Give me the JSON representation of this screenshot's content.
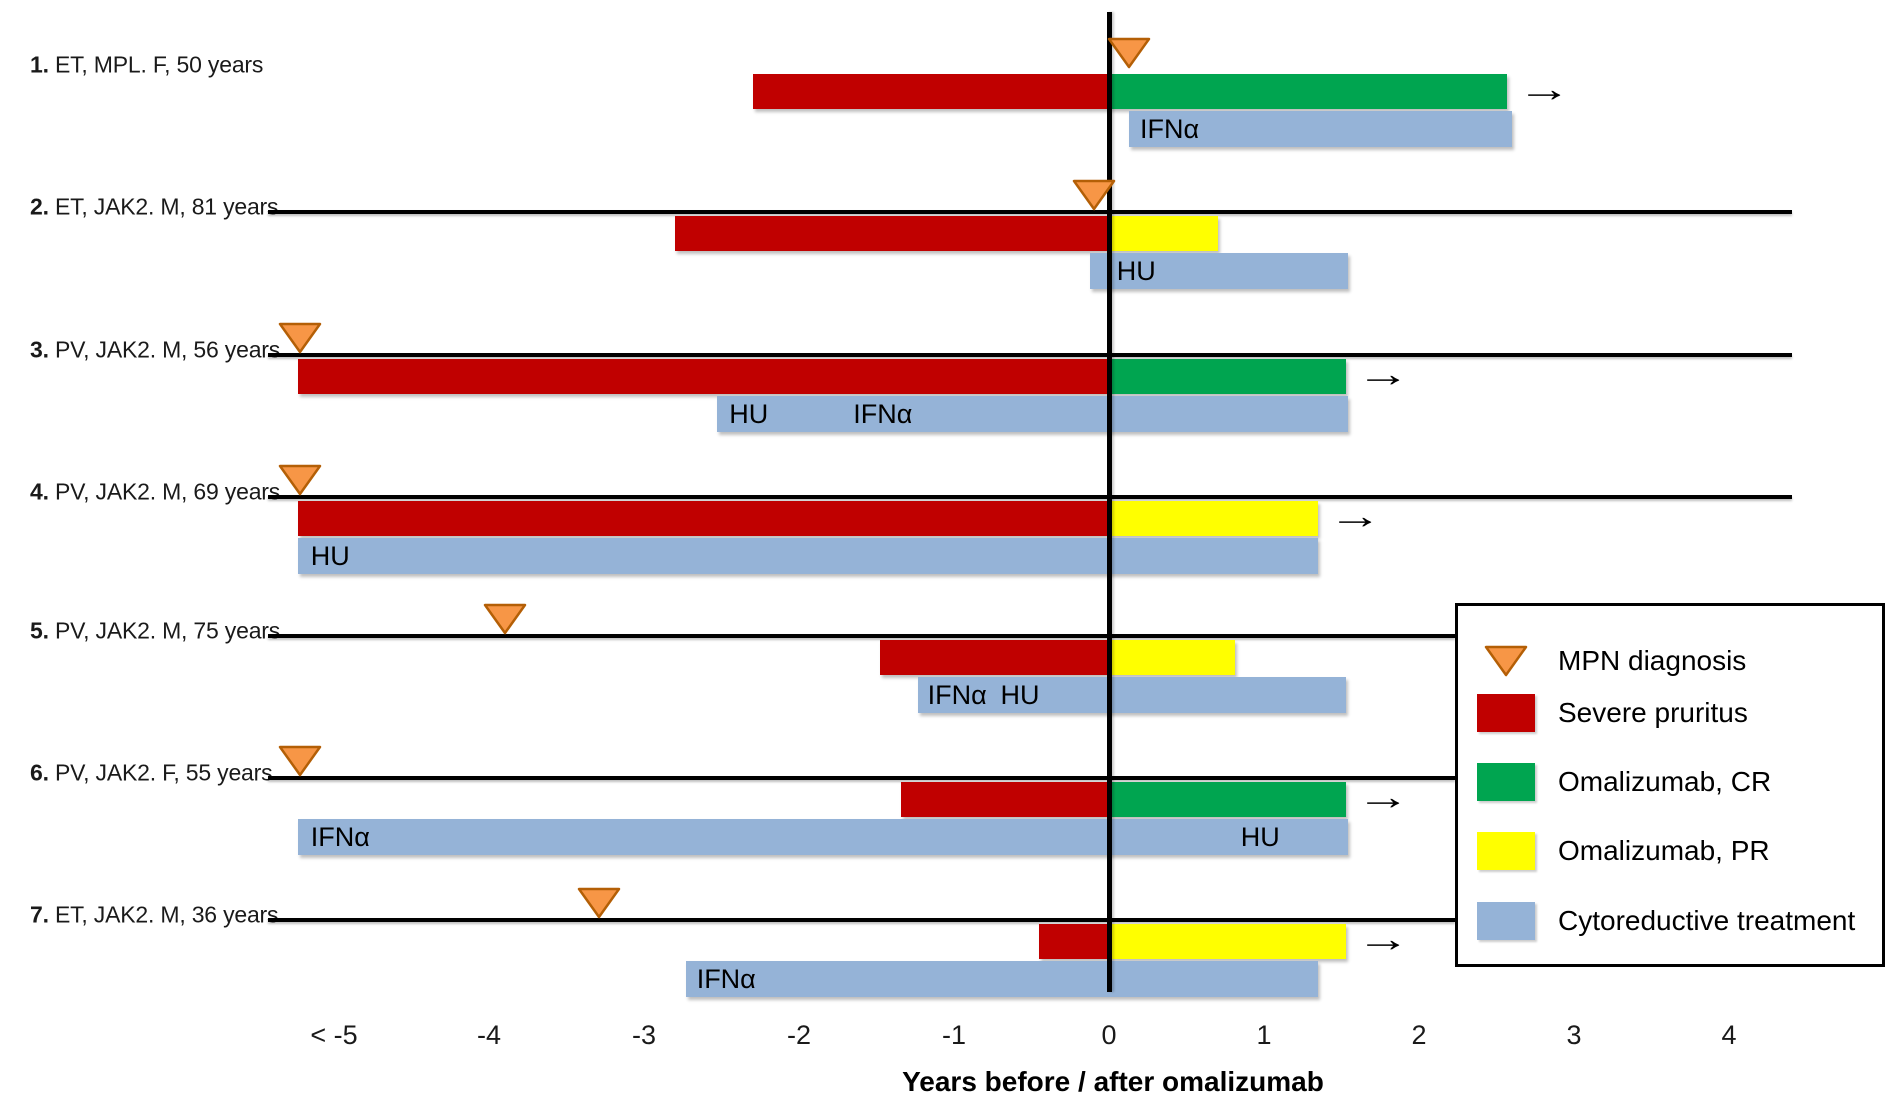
{
  "chart_data": {
    "type": "bar",
    "variant": "swimmer-plot-timeline",
    "title": "",
    "xlabel": "Years before / after omalizumab",
    "ylabel": "",
    "x_range": [
      -5.6,
      4.6
    ],
    "grid": false,
    "x_ticks": [
      {
        "label": "< -5",
        "value": -5
      },
      {
        "label": "-4",
        "value": -4
      },
      {
        "label": "-3",
        "value": -3
      },
      {
        "label": "-2",
        "value": -2
      },
      {
        "label": "-1",
        "value": -1
      },
      {
        "label": "0",
        "value": 0
      },
      {
        "label": "1",
        "value": 1
      },
      {
        "label": "2",
        "value": 2
      },
      {
        "label": "3",
        "value": 3
      },
      {
        "label": "4",
        "value": 4
      }
    ],
    "colors": {
      "diagnosis_fill": "#F79646",
      "diagnosis_border": "#B45F06",
      "pruritus": "#C00000",
      "omalizumab_cr": "#00A550",
      "omalizumab_pr": "#FFFF00",
      "cytoreductive": "#95B3D7",
      "axis": "#000000"
    },
    "legend": {
      "position": "right",
      "items": [
        {
          "key": "diagnosis",
          "symbol": "triangle-down",
          "label": "MPN diagnosis"
        },
        {
          "key": "pruritus",
          "symbol": "square",
          "label": "Severe pruritus"
        },
        {
          "key": "omalizumab_cr",
          "symbol": "square",
          "label": "Omalizumab, CR"
        },
        {
          "key": "omalizumab_pr",
          "symbol": "square",
          "label": "Omalizumab, PR"
        },
        {
          "key": "cytoreductive",
          "symbol": "square",
          "label": "Cytoreductive treatment"
        }
      ]
    },
    "patients": [
      {
        "num": "1.",
        "label": "ET, MPL. F, 50 years",
        "baseline": "none",
        "diagnosis_year": 0.13,
        "pruritus_span": [
          -2.3,
          0
        ],
        "omalizumab": {
          "response": "CR",
          "span": [
            0,
            2.57
          ],
          "ongoing": true
        },
        "cytoreductive": {
          "span": [
            0.13,
            2.6
          ],
          "drug_labels": [
            {
              "text": "IFNα",
              "year": 0.2
            }
          ]
        }
      },
      {
        "num": "2.",
        "label": "ET, JAK2. M, 81 years",
        "baseline": "long",
        "diagnosis_year": -0.1,
        "pruritus_span": [
          -2.8,
          0
        ],
        "omalizumab": {
          "response": "PR",
          "span": [
            0,
            0.7
          ],
          "ongoing": false
        },
        "cytoreductive": {
          "span": [
            -0.12,
            1.54
          ],
          "drug_labels": [
            {
              "text": "HU",
              "year": 0.05
            }
          ]
        }
      },
      {
        "num": "3.",
        "label": "PV, JAK2. M, 56 years",
        "baseline": "long",
        "diagnosis_year": -5.22,
        "pruritus_span": [
          -5.23,
          0
        ],
        "omalizumab": {
          "response": "CR",
          "span": [
            0,
            1.53
          ],
          "ongoing": true
        },
        "cytoreductive": {
          "span": [
            -2.53,
            1.54
          ],
          "drug_labels": [
            {
              "text": "HU",
              "year": -2.45
            },
            {
              "text": "IFNα",
              "year": -1.65
            }
          ]
        }
      },
      {
        "num": "4.",
        "label": "PV, JAK2. M, 69 years",
        "baseline": "long",
        "diagnosis_year": -5.22,
        "pruritus_span": [
          -5.23,
          0
        ],
        "omalizumab": {
          "response": "PR",
          "span": [
            0,
            1.35
          ],
          "ongoing": true
        },
        "cytoreductive": {
          "span": [
            -5.23,
            1.35
          ],
          "drug_labels": [
            {
              "text": "HU",
              "year": -5.15
            }
          ]
        }
      },
      {
        "num": "5.",
        "label": "PV, JAK2. M, 75 years",
        "baseline": "short",
        "diagnosis_year": -3.9,
        "pruritus_span": [
          -1.48,
          0
        ],
        "omalizumab": {
          "response": "PR",
          "span": [
            0,
            0.81
          ],
          "ongoing": false
        },
        "cytoreductive": {
          "span": [
            -1.23,
            1.53
          ],
          "drug_labels": [
            {
              "text": "IFNα",
              "year": -1.17
            },
            {
              "text": "HU",
              "year": -0.7
            }
          ]
        }
      },
      {
        "num": "6.",
        "label": "PV, JAK2. F, 55 years",
        "baseline": "short",
        "diagnosis_year": -5.22,
        "pruritus_span": [
          -1.34,
          0
        ],
        "omalizumab": {
          "response": "CR",
          "span": [
            0,
            1.53
          ],
          "ongoing": true
        },
        "cytoreductive": {
          "span": [
            -5.23,
            1.54
          ],
          "drug_labels": [
            {
              "text": "IFNα",
              "year": -5.15
            },
            {
              "text": "HU",
              "year": 0.85
            }
          ]
        }
      },
      {
        "num": "7.",
        "label": "ET, JAK2. M, 36 years",
        "baseline": "short",
        "diagnosis_year": -3.29,
        "pruritus_span": [
          -0.45,
          0
        ],
        "omalizumab": {
          "response": "PR",
          "span": [
            0,
            1.53
          ],
          "ongoing": true
        },
        "cytoreductive": {
          "span": [
            -2.73,
            1.35
          ],
          "drug_labels": [
            {
              "text": "IFNα",
              "year": -2.66
            }
          ]
        }
      }
    ]
  }
}
